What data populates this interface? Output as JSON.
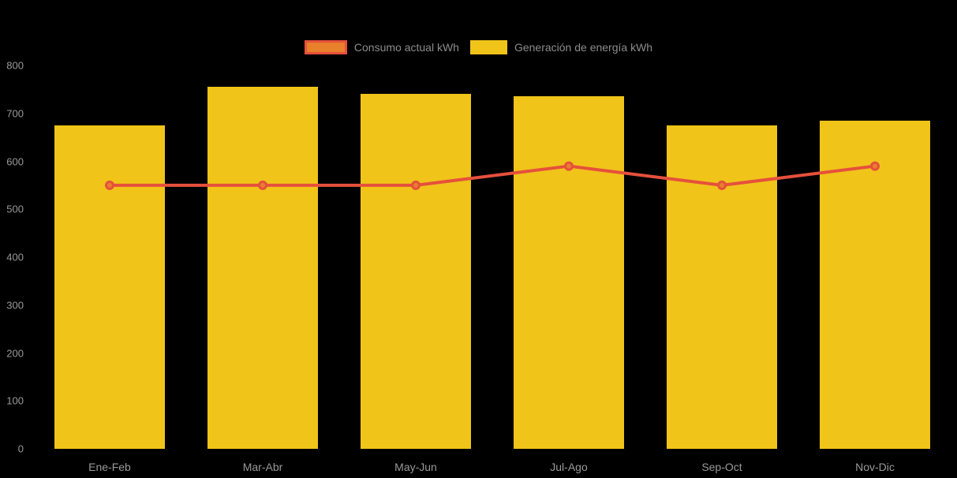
{
  "chart_data": {
    "type": "bar",
    "subtype": "bar-with-line-overlay",
    "title": "",
    "categories": [
      "Ene-Feb",
      "Mar-Abr",
      "May-Jun",
      "Jul-Ago",
      "Sep-Oct",
      "Nov-Dic"
    ],
    "series": [
      {
        "name": "Consumo actual kWh",
        "type": "line",
        "values": [
          550,
          550,
          550,
          590,
          550,
          590
        ],
        "line_color": "#E6503C",
        "point_fill": "#E8802C",
        "point_stroke": "#E6503C"
      },
      {
        "name": "Generación de energía kWh",
        "type": "bar",
        "values": [
          675,
          755,
          740,
          735,
          675,
          685
        ],
        "bar_color": "#F0C419"
      }
    ],
    "xlabel": "",
    "ylabel": "",
    "ylim": [
      0,
      800
    ],
    "yticks": [
      0,
      100,
      200,
      300,
      400,
      500,
      600,
      700,
      800
    ],
    "grid": false,
    "legend_position": "top-center",
    "background": "#000000",
    "axis_text_color": "#999999",
    "legend_text_color": "#8C8C8C"
  }
}
